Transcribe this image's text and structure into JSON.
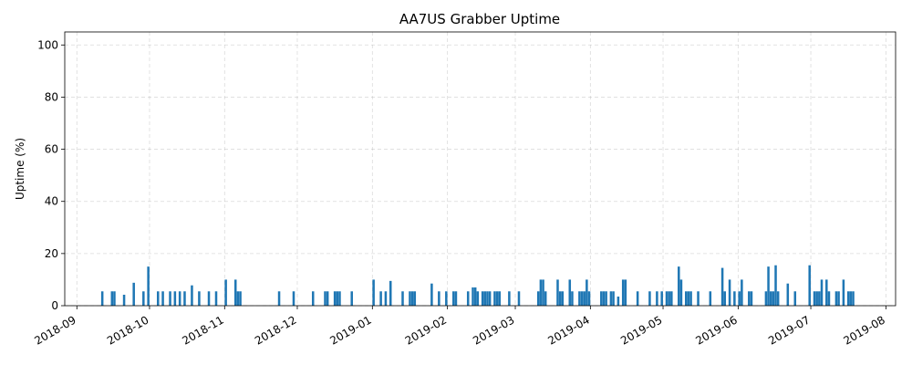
{
  "chart_data": {
    "type": "bar",
    "title": "AA7US Grabber Uptime",
    "xlabel": "",
    "ylabel": "Uptime (%)",
    "ylim": [
      0,
      105
    ],
    "xlim": [
      "2018-08-27",
      "2019-08-05"
    ],
    "yticks": [
      0,
      20,
      40,
      60,
      80,
      100
    ],
    "xticks": [
      "2018-09",
      "2018-10",
      "2018-11",
      "2018-12",
      "2019-01",
      "2019-02",
      "2019-03",
      "2019-04",
      "2019-05",
      "2019-06",
      "2019-07",
      "2019-08"
    ],
    "grid": true,
    "color": "#1f77b4",
    "x": [
      "2018-09-11",
      "2018-09-15",
      "2018-09-16",
      "2018-09-20",
      "2018-09-24",
      "2018-09-28",
      "2018-09-30",
      "2018-10-04",
      "2018-10-06",
      "2018-10-09",
      "2018-10-11",
      "2018-10-13",
      "2018-10-15",
      "2018-10-18",
      "2018-10-21",
      "2018-10-25",
      "2018-10-28",
      "2018-11-01",
      "2018-11-05",
      "2018-11-06",
      "2018-11-07",
      "2018-11-23",
      "2018-11-29",
      "2018-12-07",
      "2018-12-12",
      "2018-12-13",
      "2018-12-16",
      "2018-12-17",
      "2018-12-18",
      "2018-12-23",
      "2019-01-01",
      "2019-01-04",
      "2019-01-06",
      "2019-01-08",
      "2019-01-13",
      "2019-01-16",
      "2019-01-17",
      "2019-01-18",
      "2019-01-25",
      "2019-01-28",
      "2019-01-31",
      "2019-02-03",
      "2019-02-04",
      "2019-02-09",
      "2019-02-11",
      "2019-02-12",
      "2019-02-13",
      "2019-02-15",
      "2019-02-16",
      "2019-02-17",
      "2019-02-18",
      "2019-02-20",
      "2019-02-21",
      "2019-02-22",
      "2019-02-26",
      "2019-03-02",
      "2019-03-10",
      "2019-03-11",
      "2019-03-12",
      "2019-03-13",
      "2019-03-18",
      "2019-03-19",
      "2019-03-20",
      "2019-03-23",
      "2019-03-24",
      "2019-03-27",
      "2019-03-28",
      "2019-03-29",
      "2019-03-30",
      "2019-03-31",
      "2019-04-05",
      "2019-04-06",
      "2019-04-07",
      "2019-04-09",
      "2019-04-10",
      "2019-04-12",
      "2019-04-14",
      "2019-04-15",
      "2019-04-20",
      "2019-04-25",
      "2019-04-28",
      "2019-04-30",
      "2019-05-02",
      "2019-05-03",
      "2019-05-04",
      "2019-05-07",
      "2019-05-08",
      "2019-05-10",
      "2019-05-11",
      "2019-05-12",
      "2019-05-15",
      "2019-05-20",
      "2019-05-25",
      "2019-05-26",
      "2019-05-28",
      "2019-05-30",
      "2019-06-01",
      "2019-06-02",
      "2019-06-05",
      "2019-06-06",
      "2019-06-12",
      "2019-06-13",
      "2019-06-14",
      "2019-06-15",
      "2019-06-16",
      "2019-06-17",
      "2019-06-21",
      "2019-06-24",
      "2019-06-30",
      "2019-07-02",
      "2019-07-03",
      "2019-07-04",
      "2019-07-05",
      "2019-07-07",
      "2019-07-08",
      "2019-07-11",
      "2019-07-12",
      "2019-07-14",
      "2019-07-16",
      "2019-07-17",
      "2019-07-18"
    ],
    "values": [
      5.5,
      5.5,
      5.5,
      4.2,
      8.8,
      5.5,
      15.0,
      5.5,
      5.5,
      5.5,
      5.5,
      5.5,
      5.5,
      7.8,
      5.5,
      5.5,
      5.5,
      10.0,
      10.0,
      5.5,
      5.5,
      5.5,
      5.5,
      5.5,
      5.5,
      5.5,
      5.5,
      5.5,
      5.5,
      5.5,
      10.0,
      5.5,
      5.5,
      9.5,
      5.5,
      5.5,
      5.5,
      5.5,
      8.5,
      5.5,
      5.5,
      5.5,
      5.5,
      5.5,
      7.0,
      7.0,
      5.5,
      5.5,
      5.5,
      5.5,
      5.5,
      5.5,
      5.5,
      5.5,
      5.5,
      5.5,
      5.5,
      10.0,
      10.0,
      5.5,
      10.0,
      5.5,
      5.5,
      10.0,
      5.5,
      5.5,
      5.5,
      5.5,
      10.0,
      5.5,
      5.5,
      5.5,
      5.5,
      5.5,
      5.5,
      3.5,
      10.0,
      10.0,
      5.5,
      5.5,
      5.5,
      5.5,
      5.5,
      5.5,
      5.5,
      15.0,
      10.0,
      5.5,
      5.5,
      5.5,
      5.5,
      5.5,
      14.5,
      5.5,
      10.0,
      5.5,
      5.5,
      10.0,
      5.5,
      5.5,
      5.5,
      15.0,
      5.5,
      5.5,
      15.5,
      5.5,
      8.5,
      5.5,
      15.5,
      5.5,
      5.5,
      5.5,
      10.0,
      10.0,
      5.5,
      5.5,
      5.5,
      10.0,
      5.5,
      5.5,
      5.5
    ]
  }
}
